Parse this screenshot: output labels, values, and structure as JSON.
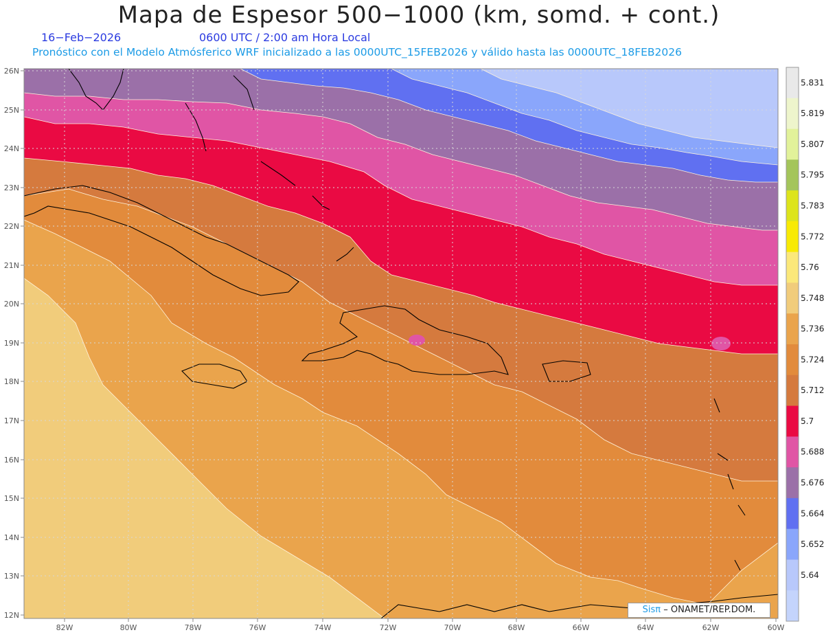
{
  "header": {
    "title": "Mapa de Espesor 500−1000 (km, somd. + cont.)",
    "date": "16−Feb−2026",
    "time": "0600 UTC / 2:00 am Hora Local",
    "forecast_note": "Pronóstico con el Modelo Atmósferico WRF inicializado a las 0000UTC_15FEB2026 y válido hasta las  0000UTC_18FEB2026"
  },
  "map": {
    "lat_labels": [
      "26N",
      "25N",
      "24N",
      "23N",
      "22N",
      "21N",
      "20N",
      "19N",
      "18N",
      "17N",
      "16N",
      "15N",
      "14N",
      "13N",
      "12N"
    ],
    "lon_labels": [
      "82W",
      "80W",
      "78W",
      "76W",
      "74W",
      "72W",
      "70W",
      "68W",
      "66W",
      "64W",
      "62W",
      "60W"
    ],
    "bands": [
      {
        "level": "5.640",
        "color": "#b8c8fb"
      },
      {
        "level": "5.652",
        "color": "#8aa6fb"
      },
      {
        "level": "5.664",
        "color": "#6070f1"
      },
      {
        "level": "5.676",
        "color": "#9b70a8"
      },
      {
        "level": "5.688",
        "color": "#e055a5"
      },
      {
        "level": "5.700",
        "color": "#ea0a43"
      },
      {
        "level": "5.712",
        "color": "#d57a3e"
      },
      {
        "level": "5.724",
        "color": "#e28b3c"
      },
      {
        "level": "5.736",
        "color": "#eaa44c"
      },
      {
        "level": "5.748",
        "color": "#f1cc7b"
      }
    ]
  },
  "colorbar": {
    "labels": [
      "5.831",
      "5.819",
      "5.807",
      "5.795",
      "5.783",
      "5.772",
      "5.76",
      "5.748",
      "5.736",
      "5.724",
      "5.712",
      "5.7",
      "5.688",
      "5.676",
      "5.664",
      "5.652",
      "5.64"
    ],
    "colors": [
      "#e9e9e9",
      "#eef5cc",
      "#e2f29a",
      "#a4c55b",
      "#dde41c",
      "#f8ea05",
      "#fbe87a",
      "#f1cc7b",
      "#eaa44c",
      "#e28b3c",
      "#d57a3e",
      "#ea0a43",
      "#e055a5",
      "#9b70a8",
      "#6070f1",
      "#8aa6fb",
      "#b8c8fb",
      "#c4d4fc"
    ]
  },
  "credit": {
    "logo": "Sisπ",
    "text": "– ONAMET/REP.DOM."
  }
}
